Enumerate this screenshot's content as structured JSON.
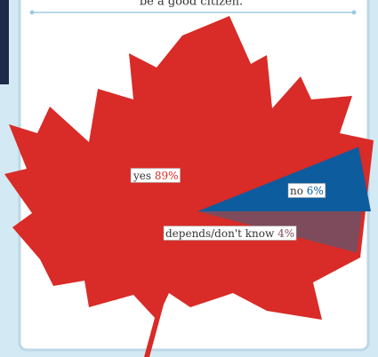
{
  "chart_data": {
    "type": "pie",
    "title": "be a good citizen.",
    "categories": [
      "yes",
      "no",
      "depends/don't know"
    ],
    "values": [
      89,
      6,
      4
    ],
    "value_labels": [
      "89%",
      "6%",
      "4%"
    ],
    "colors": [
      "#d92b27",
      "#0d5c9e",
      "#7e4b5c"
    ]
  }
}
